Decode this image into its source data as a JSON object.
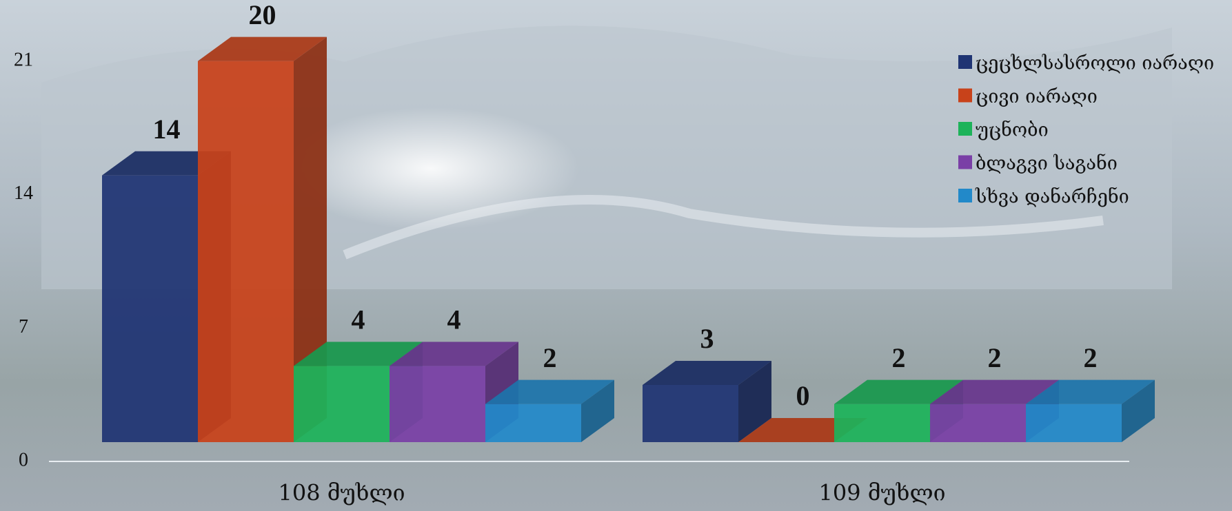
{
  "chart_data": {
    "type": "bar3d",
    "categories": [
      "108 მუხლი",
      "109 მუხლი"
    ],
    "series": [
      {
        "name": "ცეცხლსასროლი იარაღი",
        "color": "#1f3473",
        "values": [
          14,
          3
        ]
      },
      {
        "name": "ცივი იარაღი",
        "color": "#c8421a",
        "values": [
          20,
          0
        ]
      },
      {
        "name": "უცნობი",
        "color": "#1db35a",
        "values": [
          4,
          2
        ]
      },
      {
        "name": "ბლაგვი საგანი",
        "color": "#7a3fa6",
        "values": [
          4,
          2
        ]
      },
      {
        "name": "სხვა დანარჩენი",
        "color": "#2289c9",
        "values": [
          2,
          2
        ]
      }
    ],
    "ylim": [
      0,
      21
    ],
    "yticks": [
      0,
      7,
      14,
      21
    ],
    "legend": "top-right"
  }
}
